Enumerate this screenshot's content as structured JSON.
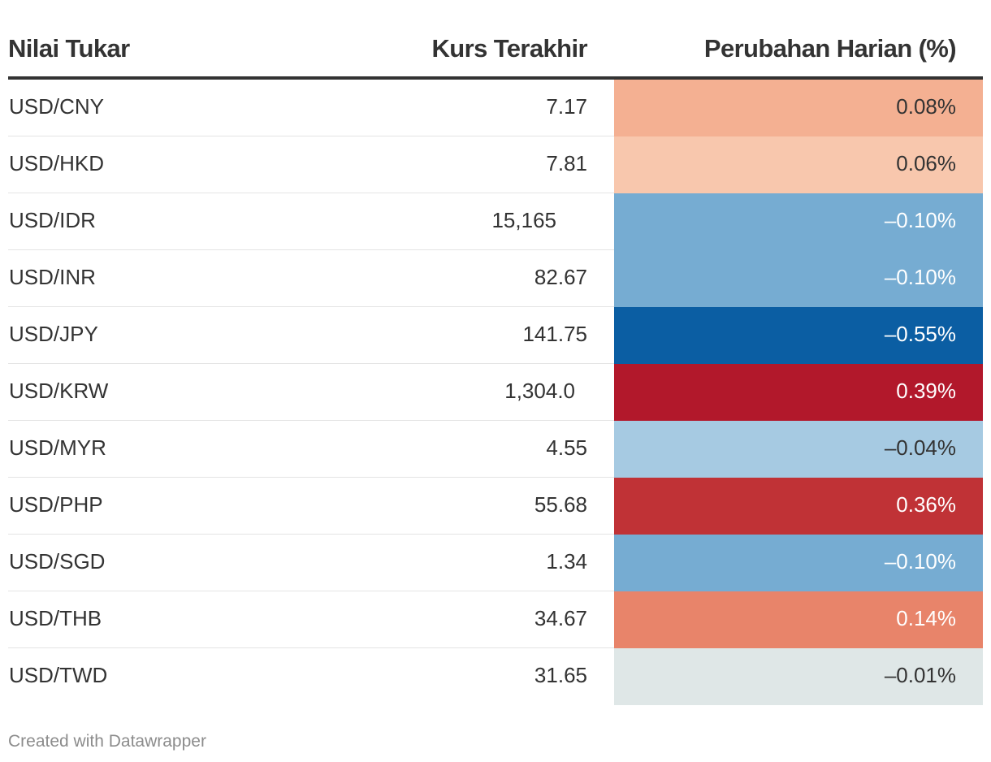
{
  "chart_data": {
    "type": "table",
    "columns": [
      "Nilai Tukar",
      "Kurs Terakhir",
      "Perubahan Harian (%)"
    ],
    "rows": [
      {
        "pair": "USD/CNY",
        "rate": "7.17",
        "change": "0.08%",
        "value": 0.08,
        "color": "#f4b092",
        "text_color": "#333333"
      },
      {
        "pair": "USD/HKD",
        "rate": "7.81",
        "change": "0.06%",
        "value": 0.06,
        "color": "#f8c7ad",
        "text_color": "#333333"
      },
      {
        "pair": "USD/IDR",
        "rate": "15,165",
        "change": "–0.10%",
        "value": -0.1,
        "color": "#76acd2",
        "text_color": "#ffffff"
      },
      {
        "pair": "USD/INR",
        "rate": "82.67",
        "change": "–0.10%",
        "value": -0.1,
        "color": "#76acd2",
        "text_color": "#ffffff"
      },
      {
        "pair": "USD/JPY",
        "rate": "141.75",
        "change": "–0.55%",
        "value": -0.55,
        "color": "#0b5ea3",
        "text_color": "#ffffff"
      },
      {
        "pair": "USD/KRW",
        "rate": "1,304.0",
        "change": "0.39%",
        "value": 0.39,
        "color": "#b2182b",
        "text_color": "#ffffff"
      },
      {
        "pair": "USD/MYR",
        "rate": "4.55",
        "change": "–0.04%",
        "value": -0.04,
        "color": "#a6cae2",
        "text_color": "#333333"
      },
      {
        "pair": "USD/PHP",
        "rate": "55.68",
        "change": "0.36%",
        "value": 0.36,
        "color": "#c03236",
        "text_color": "#ffffff"
      },
      {
        "pair": "USD/SGD",
        "rate": "1.34",
        "change": "–0.10%",
        "value": -0.1,
        "color": "#76acd2",
        "text_color": "#ffffff"
      },
      {
        "pair": "USD/THB",
        "rate": "34.67",
        "change": "0.14%",
        "value": 0.14,
        "color": "#e8846a",
        "text_color": "#ffffff"
      },
      {
        "pair": "USD/TWD",
        "rate": "31.65",
        "change": "–0.01%",
        "value": -0.01,
        "color": "#dfe7e7",
        "text_color": "#333333"
      }
    ]
  },
  "header": {
    "col_name": "Nilai Tukar",
    "col_rate": "Kurs Terakhir",
    "col_change": "Perubahan Harian (%)"
  },
  "footer": {
    "credit": "Created with Datawrapper"
  }
}
